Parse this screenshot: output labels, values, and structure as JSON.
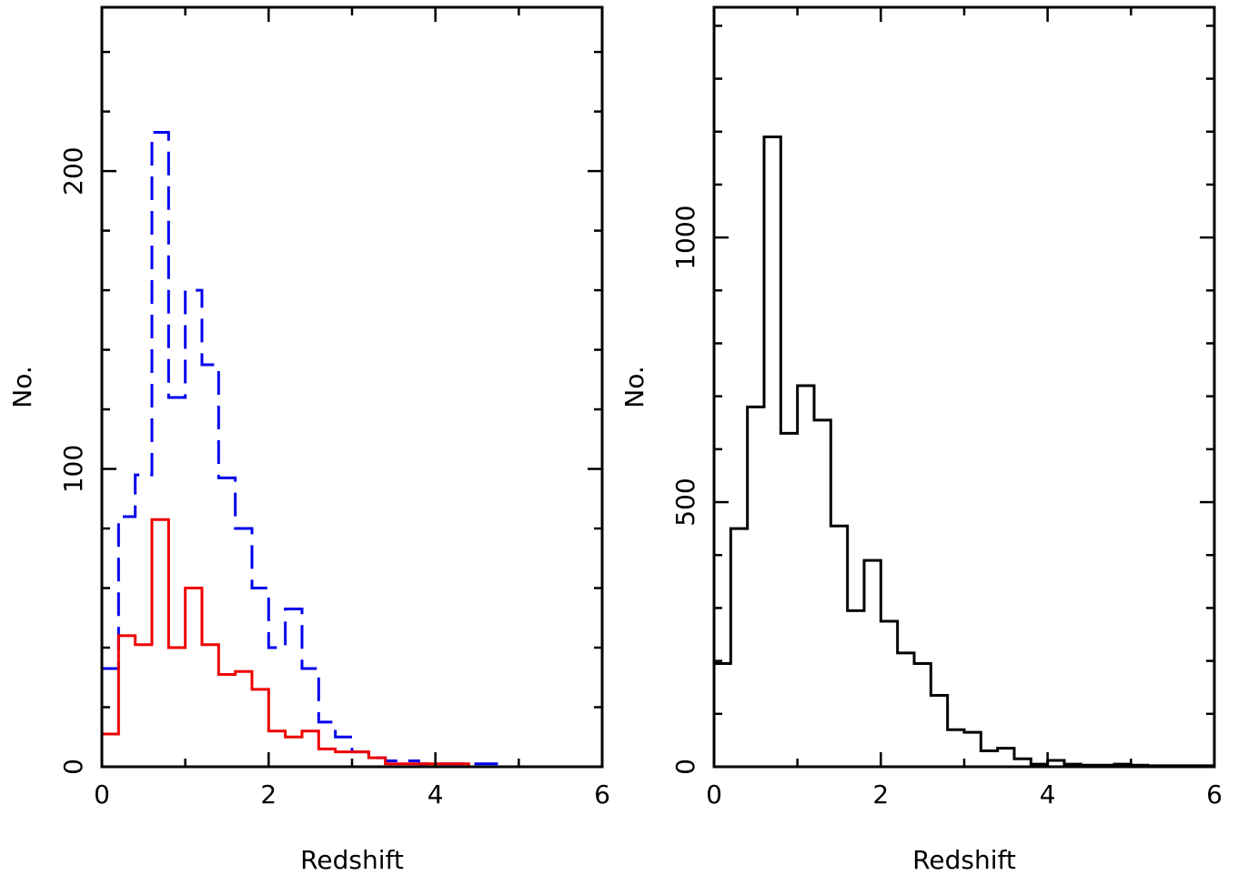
{
  "chart_data": [
    {
      "type": "line",
      "step": "histogram",
      "xlabel": "Redshift",
      "ylabel": "No.",
      "xlim": [
        0,
        6
      ],
      "ylim": [
        0,
        255
      ],
      "x_ticks": [
        0,
        2,
        4,
        6
      ],
      "y_ticks": [
        0,
        100,
        200
      ],
      "x_minor_step": 1,
      "y_minor_step": 20,
      "bin_edges": [
        0,
        0.2,
        0.4,
        0.6,
        0.8,
        1.0,
        1.2,
        1.4,
        1.6,
        1.8,
        2.0,
        2.2,
        2.4,
        2.6,
        2.8,
        3.0,
        3.2,
        3.4,
        3.6,
        3.8,
        4.0,
        4.2,
        4.4,
        4.6,
        4.8,
        5.0,
        5.2,
        5.4,
        5.6,
        5.8,
        6.0
      ],
      "series": [
        {
          "color": "#0000ee",
          "style": "dashed",
          "values": [
            33,
            84,
            98,
            213,
            124,
            160,
            135,
            97,
            80,
            60,
            40,
            53,
            33,
            15,
            10,
            5,
            3,
            2,
            2,
            1,
            1,
            1,
            1,
            1,
            0,
            0,
            0,
            0,
            0,
            0
          ]
        },
        {
          "color": "#ee0000",
          "style": "solid",
          "values": [
            11,
            44,
            41,
            83,
            40,
            60,
            41,
            31,
            32,
            26,
            12,
            10,
            12,
            6,
            5,
            5,
            3,
            1,
            1,
            1,
            1,
            1,
            0,
            0,
            0,
            0,
            0,
            0,
            0,
            0
          ]
        }
      ]
    },
    {
      "type": "line",
      "step": "histogram",
      "xlabel": "Redshift",
      "ylabel": "No.",
      "xlim": [
        0,
        6
      ],
      "ylim": [
        0,
        1435
      ],
      "x_ticks": [
        0,
        2,
        4,
        6
      ],
      "y_ticks": [
        0,
        500,
        1000
      ],
      "x_minor_step": 1,
      "y_minor_step": 100,
      "bin_edges": [
        0,
        0.2,
        0.4,
        0.6,
        0.8,
        1.0,
        1.2,
        1.4,
        1.6,
        1.8,
        2.0,
        2.2,
        2.4,
        2.6,
        2.8,
        3.0,
        3.2,
        3.4,
        3.6,
        3.8,
        4.0,
        4.2,
        4.4,
        4.6,
        4.8,
        5.0,
        5.2,
        5.4,
        5.6,
        5.8,
        6.0
      ],
      "series": [
        {
          "color": "#000000",
          "style": "solid",
          "values": [
            195,
            450,
            680,
            1190,
            630,
            720,
            655,
            455,
            295,
            390,
            275,
            215,
            195,
            135,
            70,
            65,
            30,
            35,
            15,
            5,
            12,
            5,
            3,
            3,
            5,
            3,
            2,
            2,
            2,
            2
          ]
        }
      ]
    }
  ]
}
